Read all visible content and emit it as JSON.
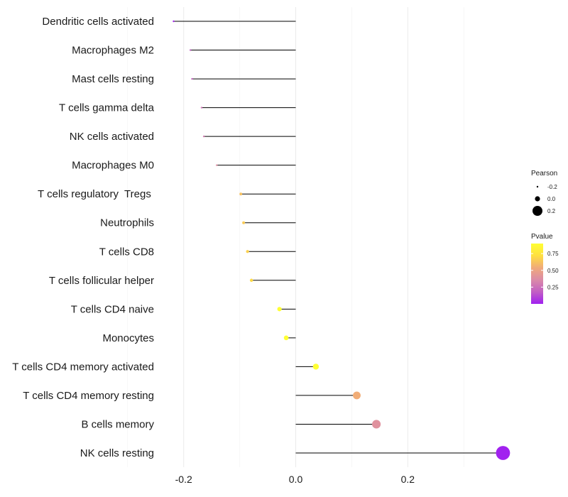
{
  "chart_data": {
    "type": "lollipop",
    "title": "",
    "xlabel": "",
    "ylabel": "",
    "xlim": [
      -0.3,
      0.38
    ],
    "xticks": [
      -0.2,
      0.0,
      0.2
    ],
    "xtick_labels": [
      "-0.2",
      "0.0",
      "0.2"
    ],
    "grid": true,
    "legend_position": "right",
    "points": [
      {
        "label": "Dendritic cells activated",
        "value": -0.218,
        "pvalue": 0.02
      },
      {
        "label": "Macrophages M2",
        "value": -0.188,
        "pvalue": 0.18
      },
      {
        "label": "Mast cells resting",
        "value": -0.185,
        "pvalue": 0.2
      },
      {
        "label": "T cells gamma delta",
        "value": -0.168,
        "pvalue": 0.27
      },
      {
        "label": "NK cells activated",
        "value": -0.164,
        "pvalue": 0.3
      },
      {
        "label": "Macrophages M0",
        "value": -0.141,
        "pvalue": 0.38
      },
      {
        "label": "T cells regulatory  Tregs ",
        "value": -0.098,
        "pvalue": 0.62
      },
      {
        "label": "Neutrophils",
        "value": -0.093,
        "pvalue": 0.65
      },
      {
        "label": "T cells CD8",
        "value": -0.086,
        "pvalue": 0.67
      },
      {
        "label": "T cells follicular helper",
        "value": -0.079,
        "pvalue": 0.7
      },
      {
        "label": "T cells CD4 naive",
        "value": -0.029,
        "pvalue": 0.92
      },
      {
        "label": "Monocytes",
        "value": -0.017,
        "pvalue": 0.95
      },
      {
        "label": "T cells CD4 memory activated",
        "value": 0.036,
        "pvalue": 0.9
      },
      {
        "label": "T cells CD4 memory resting",
        "value": 0.109,
        "pvalue": 0.55
      },
      {
        "label": "B cells memory",
        "value": 0.144,
        "pvalue": 0.4
      },
      {
        "label": "NK cells resting",
        "value": 0.37,
        "pvalue": 0.005
      }
    ],
    "legend_size": {
      "title": "Pearson",
      "values": [
        -0.2,
        0.0,
        0.2
      ],
      "labels": [
        "-0.2",
        "0.0",
        "0.2"
      ]
    },
    "legend_color": {
      "title": "Pvalue",
      "range": [
        0.0,
        0.9
      ],
      "ticks": [
        0.25,
        0.5,
        0.75
      ],
      "tick_labels": [
        "0.25",
        "0.50",
        "0.75"
      ],
      "colors": [
        "#a020f0",
        "#c25fc4",
        "#db8ba8",
        "#f0aa7a",
        "#ffe040",
        "#ffff33"
      ]
    }
  }
}
